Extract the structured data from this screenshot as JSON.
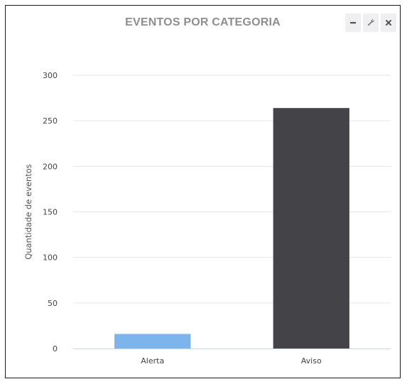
{
  "panel": {
    "title": "EVENTOS POR CATEGORIA",
    "buttons": {
      "minimize_icon": "minus-icon",
      "settings_icon": "wrench-icon",
      "close_icon": "close-icon"
    }
  },
  "chart_data": {
    "type": "bar",
    "title": "EVENTOS POR CATEGORIA",
    "xlabel": "",
    "ylabel": "Quantidade de eventos",
    "categories": [
      "Alerta",
      "Aviso"
    ],
    "values": [
      16,
      264
    ],
    "colors": [
      "#7cb5ec",
      "#434348"
    ],
    "ylim": [
      0,
      300
    ],
    "yticks": [
      0,
      50,
      100,
      150,
      200,
      250,
      300
    ],
    "grid": true,
    "legend": "none"
  }
}
